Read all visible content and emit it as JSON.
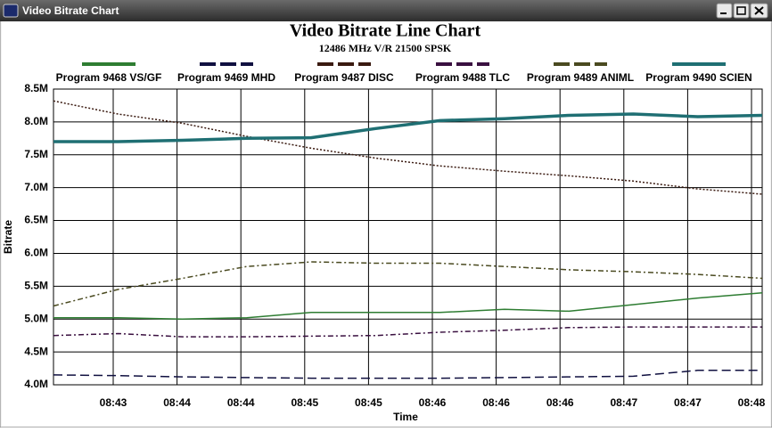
{
  "window": {
    "title": "Video Bitrate Chart"
  },
  "chart_data": {
    "type": "line",
    "title": "Video Bitrate Line Chart",
    "subtitle": "12486 MHz V/R 21500 SPSK",
    "x_label": "Time",
    "y_label": "Bitrate",
    "xticks": [
      "08:43",
      "08:44",
      "08:44",
      "08:45",
      "08:45",
      "08:46",
      "08:46",
      "08:46",
      "08:47",
      "08:47",
      "08:48"
    ],
    "ylim": [
      4.0,
      8.5
    ],
    "yticks": [
      {
        "value": 4.0,
        "label": "4.0M"
      },
      {
        "value": 4.5,
        "label": "4.5M"
      },
      {
        "value": 5.0,
        "label": "5.0M"
      },
      {
        "value": 5.5,
        "label": "5.5M"
      },
      {
        "value": 6.0,
        "label": "6.0M"
      },
      {
        "value": 6.5,
        "label": "6.5M"
      },
      {
        "value": 7.0,
        "label": "7.0M"
      },
      {
        "value": 7.5,
        "label": "7.5M"
      },
      {
        "value": 8.0,
        "label": "8.0M"
      },
      {
        "value": 8.5,
        "label": "8.5M"
      }
    ],
    "grid": true,
    "series": [
      {
        "name": "Program 9468 VS/GF",
        "color": "#2e7d32",
        "dash": "solid",
        "width": 1.5,
        "values": [
          5.02,
          5.02,
          5.0,
          5.02,
          5.1,
          5.1,
          5.1,
          5.15,
          5.12,
          5.22,
          5.32,
          5.4
        ]
      },
      {
        "name": "Program 9469 MHD",
        "color": "#101040",
        "dash": "dashed",
        "width": 1.5,
        "values": [
          4.15,
          4.14,
          4.12,
          4.11,
          4.1,
          4.1,
          4.1,
          4.11,
          4.12,
          4.13,
          4.22,
          4.22
        ]
      },
      {
        "name": "Program 9487 DISC",
        "color": "#3a1a10",
        "dash": "dotted",
        "width": 1.5,
        "values": [
          8.32,
          8.12,
          7.98,
          7.78,
          7.6,
          7.45,
          7.33,
          7.25,
          7.18,
          7.1,
          6.98,
          6.9
        ]
      },
      {
        "name": "Program 9488 TLC",
        "color": "#3a1040",
        "dash": "dashdot",
        "width": 1.5,
        "values": [
          4.75,
          4.78,
          4.73,
          4.73,
          4.74,
          4.75,
          4.8,
          4.83,
          4.87,
          4.88,
          4.88,
          4.88
        ]
      },
      {
        "name": "Program 9489 ANIML",
        "color": "#4a4a20",
        "dash": "dashdot",
        "width": 1.5,
        "values": [
          5.2,
          5.45,
          5.62,
          5.8,
          5.87,
          5.85,
          5.85,
          5.8,
          5.75,
          5.72,
          5.68,
          5.62
        ]
      },
      {
        "name": "Program 9490 SCIEN",
        "color": "#1f6f73",
        "dash": "solid",
        "width": 3.5,
        "values": [
          7.7,
          7.7,
          7.72,
          7.75,
          7.76,
          7.9,
          8.02,
          8.05,
          8.1,
          8.12,
          8.08,
          8.1
        ]
      }
    ]
  }
}
